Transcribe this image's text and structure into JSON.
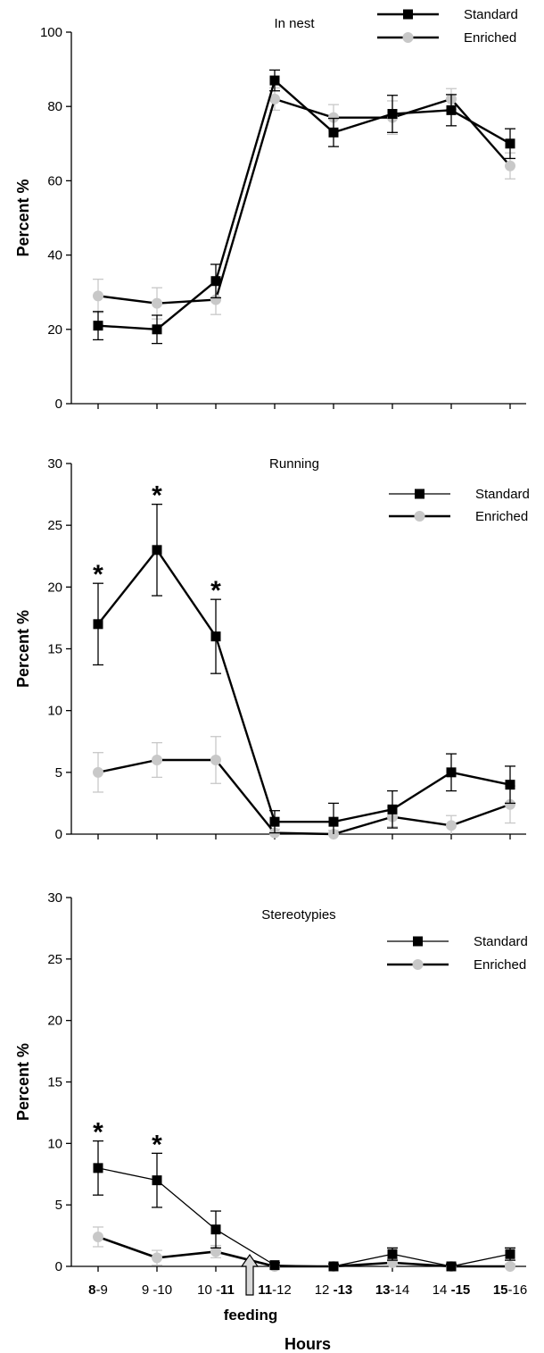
{
  "chart_data": [
    {
      "type": "line",
      "title": "In nest",
      "ylabel": "Percent %",
      "ylim": [
        0,
        100
      ],
      "yticks": [
        "0",
        "20",
        "40",
        "60",
        "80",
        "100"
      ],
      "legend_position": "top-right",
      "series": [
        {
          "name": "Standard",
          "color": "#000000",
          "marker": "square",
          "values": [
            21,
            20,
            33,
            87,
            73,
            78,
            79,
            70
          ],
          "errors": [
            3.8,
            3.8,
            4.5,
            2.8,
            3.8,
            5,
            4.2,
            4
          ]
        },
        {
          "name": "Enriched",
          "color": "#c8c8c8",
          "marker": "circle",
          "values": [
            29,
            27,
            28,
            82,
            77,
            77,
            82,
            64
          ],
          "errors": [
            4.5,
            4.2,
            4,
            3,
            3.5,
            4.5,
            2.8,
            3.5
          ]
        }
      ],
      "significant": []
    },
    {
      "type": "line",
      "title": "Running",
      "ylabel": "Percent %",
      "ylim": [
        0,
        30
      ],
      "yticks": [
        "0",
        "5",
        "10",
        "15",
        "20",
        "25",
        "30"
      ],
      "legend_position": "top-right",
      "series": [
        {
          "name": "Standard",
          "color": "#000000",
          "marker": "square",
          "values": [
            17,
            23,
            16,
            1,
            1,
            2,
            5,
            4
          ],
          "errors": [
            3.3,
            3.7,
            3,
            0.9,
            1.5,
            1.5,
            1.5,
            1.5
          ]
        },
        {
          "name": "Enriched",
          "color": "#c8c8c8",
          "marker": "circle",
          "values": [
            5,
            6,
            6,
            0.1,
            0,
            1.4,
            0.7,
            2.4
          ],
          "errors": [
            1.6,
            1.4,
            1.9,
            0.3,
            0.3,
            0.8,
            0.8,
            1.5
          ]
        }
      ],
      "significant": [
        "8-9",
        "9-10",
        "10-11"
      ]
    },
    {
      "type": "line",
      "title": "Stereotypies",
      "ylabel": "Percent %",
      "ylim": [
        0,
        30
      ],
      "yticks": [
        "0",
        "5",
        "10",
        "15",
        "20",
        "25",
        "30"
      ],
      "legend_position": "top-right",
      "series": [
        {
          "name": "Standard",
          "color": "#000000",
          "marker": "square",
          "values": [
            8,
            7,
            3,
            0.1,
            0,
            1,
            0,
            1
          ],
          "errors": [
            2.2,
            2.2,
            1.5,
            0.2,
            0.2,
            0.5,
            0.2,
            0.5
          ]
        },
        {
          "name": "Enriched",
          "color": "#c8c8c8",
          "marker": "circle",
          "values": [
            2.4,
            0.7,
            1.2,
            0,
            0,
            0.3,
            0,
            0
          ],
          "errors": [
            0.8,
            0.6,
            0.5,
            0.2,
            0.2,
            0.3,
            0.2,
            0.2
          ]
        }
      ],
      "significant": [
        "8-9",
        "9-10"
      ]
    }
  ],
  "x_axis": {
    "categories": [
      {
        "id": "8-9",
        "parts": [
          {
            "t": "8",
            "b": true
          },
          {
            "t": "-9",
            "b": false
          }
        ]
      },
      {
        "id": "9-10",
        "parts": [
          {
            "t": "9 -10",
            "b": false
          }
        ]
      },
      {
        "id": "10-11",
        "parts": [
          {
            "t": "10 -",
            "b": false
          },
          {
            "t": "11",
            "b": true
          }
        ]
      },
      {
        "id": "11-12",
        "parts": [
          {
            "t": "11",
            "b": true
          },
          {
            "t": "-12",
            "b": false
          }
        ]
      },
      {
        "id": "12-13",
        "parts": [
          {
            "t": "12 ",
            "b": false
          },
          {
            "t": "-13",
            "b": true
          }
        ]
      },
      {
        "id": "13-14",
        "parts": [
          {
            "t": "13",
            "b": true
          },
          {
            "t": "-14",
            "b": false
          }
        ]
      },
      {
        "id": "14-15",
        "parts": [
          {
            "t": "14 ",
            "b": false
          },
          {
            "t": "-15",
            "b": true
          }
        ]
      },
      {
        "id": "15-16",
        "parts": [
          {
            "t": "15",
            "b": true
          },
          {
            "t": "-16",
            "b": false
          }
        ]
      }
    ],
    "title": "Hours",
    "feeding_label": "feeding"
  },
  "significance_symbol": "*",
  "colors": {
    "standard": "#000000",
    "enriched": "#c8c8c8"
  }
}
